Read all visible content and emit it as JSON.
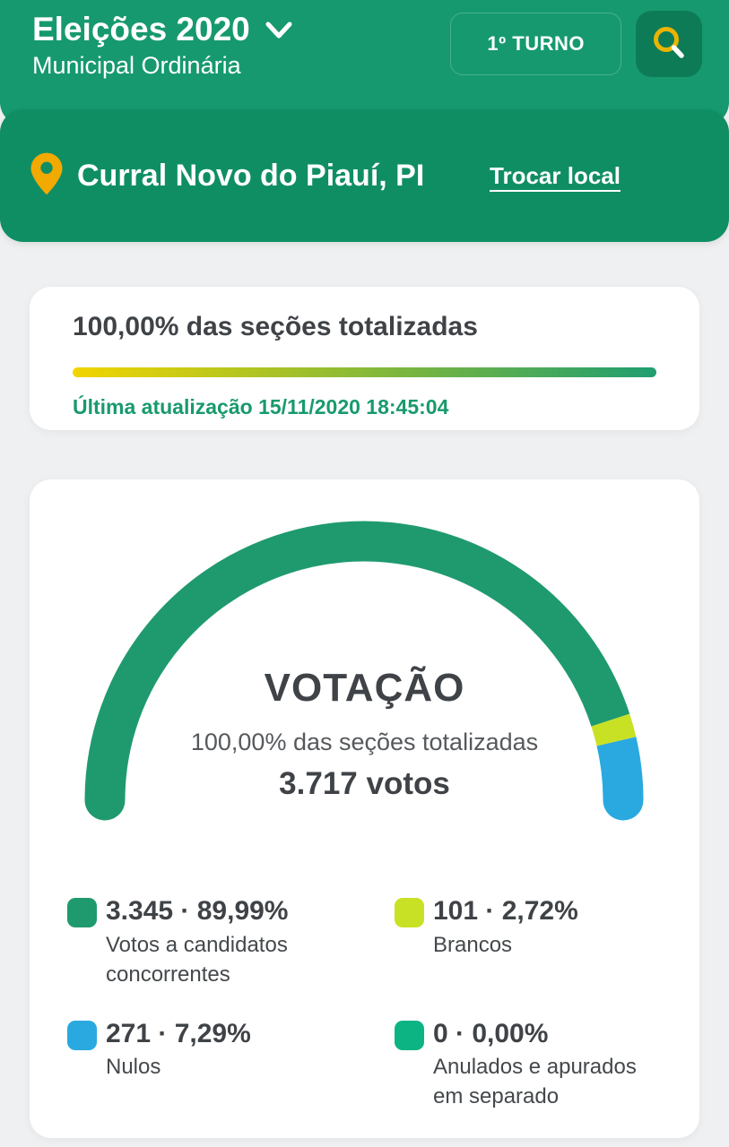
{
  "colors": {
    "header_green": "#16996E",
    "location_green": "#0F8E64",
    "search_button_green": "#0E7B57",
    "search_icon_gold": "#EBB400",
    "pin_orange": "#F2A900",
    "update_text_green": "#189A6C",
    "page_background": "#EFF0F1"
  },
  "header": {
    "title": "Eleições 2020",
    "subtitle": "Municipal Ordinária",
    "round_badge": "1º TURNO"
  },
  "location": {
    "name": "Curral Novo do Piauí, PI",
    "change_link": "Trocar local"
  },
  "progress": {
    "title": "100,00% das seções totalizadas",
    "bar_gradient_from": "#F2D500",
    "bar_gradient_to": "#1F9E70",
    "last_update": "Última atualização 15/11/2020 18:45:04"
  },
  "votacao": {
    "title": "VOTAÇÃO",
    "subtitle": "100,00% das seções totalizadas",
    "total": "3.717 votos",
    "legend": [
      {
        "value": "3.345 · 89,99%",
        "label": "Votos a candidatos concorrentes",
        "color": "#1F9A6E"
      },
      {
        "value": "101 · 2,72%",
        "label": "Brancos",
        "color": "#C9E125"
      },
      {
        "value": "271 · 7,29%",
        "label": "Nulos",
        "color": "#29A9E0"
      },
      {
        "value": "0 · 0,00%",
        "label": "Anulados e apurados em separado",
        "color": "#0DB483"
      }
    ]
  },
  "chart_data": {
    "type": "pie",
    "variant": "half-donut-gauge",
    "title": "VOTAÇÃO",
    "subtitle": "100,00% das seções totalizadas",
    "categories": [
      "Votos a candidatos concorrentes",
      "Brancos",
      "Nulos",
      "Anulados e apurados em separado"
    ],
    "values": [
      3345,
      101,
      271,
      0
    ],
    "percentages": [
      89.99,
      2.72,
      7.29,
      0.0
    ],
    "colors": [
      "#1F9A6E",
      "#C9E125",
      "#29A9E0",
      "#0DB483"
    ],
    "total_votes": 3717,
    "total_label": "3.717 votos",
    "legend_position": "bottom"
  }
}
